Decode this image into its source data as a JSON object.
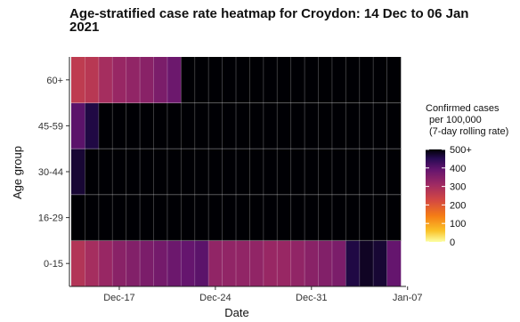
{
  "chart_data": {
    "type": "heatmap",
    "title_line1": "Age-stratified case rate heatmap for Croydon: 14 Dec to 06 Jan",
    "title_line2": "2021",
    "xlabel": "Date",
    "ylabel": "Age group",
    "x_ticks": [
      "Dec-17",
      "Dec-24",
      "Dec-31",
      "Jan-07"
    ],
    "dates": [
      "2020-12-14",
      "2020-12-15",
      "2020-12-16",
      "2020-12-17",
      "2020-12-18",
      "2020-12-19",
      "2020-12-20",
      "2020-12-21",
      "2020-12-22",
      "2020-12-23",
      "2020-12-24",
      "2020-12-25",
      "2020-12-26",
      "2020-12-27",
      "2020-12-28",
      "2020-12-29",
      "2020-12-30",
      "2020-12-31",
      "2021-01-01",
      "2021-01-02",
      "2021-01-03",
      "2021-01-04",
      "2021-01-05",
      "2021-01-06"
    ],
    "age_groups": [
      "0-15",
      "16-29",
      "30-44",
      "45-59",
      "60+"
    ],
    "values": {
      "60+": [
        260,
        270,
        300,
        320,
        330,
        340,
        360,
        380,
        500,
        500,
        500,
        500,
        500,
        500,
        500,
        500,
        500,
        500,
        500,
        500,
        500,
        500,
        500,
        500
      ],
      "45-59": [
        400,
        460,
        500,
        500,
        500,
        500,
        500,
        500,
        500,
        500,
        500,
        500,
        500,
        500,
        500,
        500,
        500,
        500,
        500,
        500,
        500,
        500,
        500,
        500
      ],
      "30-44": [
        470,
        500,
        500,
        500,
        500,
        500,
        500,
        500,
        500,
        500,
        500,
        500,
        500,
        500,
        500,
        500,
        500,
        500,
        500,
        500,
        500,
        500,
        500,
        500
      ],
      "16-29": [
        500,
        500,
        500,
        500,
        500,
        500,
        500,
        500,
        500,
        500,
        500,
        500,
        500,
        500,
        500,
        500,
        500,
        500,
        500,
        500,
        500,
        500,
        500,
        500
      ],
      "0-15": [
        280,
        300,
        320,
        340,
        350,
        360,
        370,
        380,
        390,
        400,
        330,
        330,
        330,
        330,
        320,
        320,
        330,
        340,
        350,
        360,
        460,
        480,
        470,
        390
      ]
    },
    "legend": {
      "title": [
        "Confirmed cases",
        "per 100,000",
        "(7-day rolling rate)"
      ],
      "ticks": [
        "500+",
        "400",
        "300",
        "200",
        "100",
        "0"
      ],
      "tick_values": [
        500,
        400,
        300,
        200,
        100,
        0
      ],
      "range": [
        0,
        500
      ],
      "colormap": "inferno"
    },
    "grid": true
  }
}
